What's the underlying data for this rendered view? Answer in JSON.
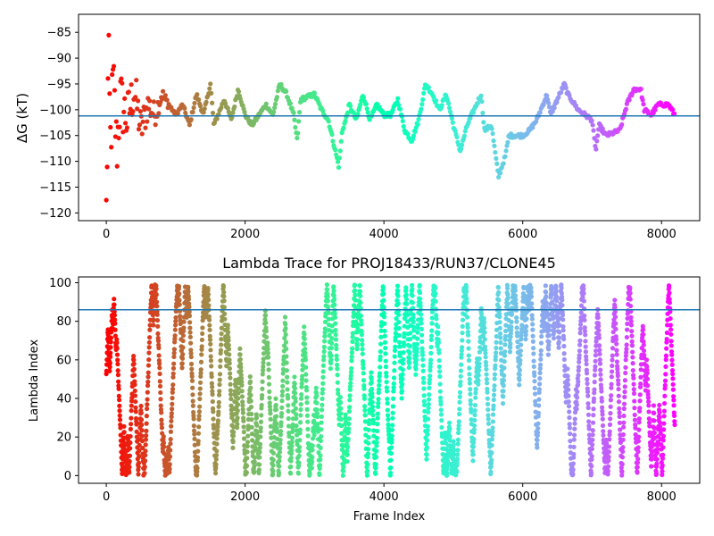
{
  "chart_data": [
    {
      "type": "scatter",
      "title": "",
      "xlabel": "",
      "ylabel": "ΔG (kT)",
      "xlim": [
        -400,
        8550
      ],
      "ylim": [
        -121.5,
        -81.5
      ],
      "xticks": [
        0,
        2000,
        4000,
        6000,
        8000
      ],
      "yticks": [
        -85,
        -90,
        -95,
        -100,
        -105,
        -110,
        -115,
        -120
      ],
      "ytick_labels": [
        "−85",
        "−90",
        "−95",
        "−100",
        "−105",
        "−110",
        "−115",
        "−120"
      ],
      "hline": -101.2,
      "hline_color": "#1f77b4",
      "colormap": "rainbow (reversed: red at start, violet at end)",
      "frames": 8190,
      "grid": false,
      "trace": [
        [
          0,
          -120
        ],
        [
          30,
          -90
        ],
        [
          60,
          -106
        ],
        [
          80,
          -100
        ],
        [
          100,
          -94
        ],
        [
          150,
          -108
        ],
        [
          200,
          -98
        ],
        [
          300,
          -102
        ],
        [
          400,
          -96
        ],
        [
          500,
          -104
        ],
        [
          600,
          -99
        ],
        [
          700,
          -101
        ],
        [
          800,
          -97
        ],
        [
          1000,
          -101
        ],
        [
          1100,
          -99
        ],
        [
          1200,
          -103
        ],
        [
          1300,
          -97
        ],
        [
          1400,
          -101
        ],
        [
          1500,
          -95
        ],
        [
          1550,
          -103
        ],
        [
          1700,
          -98
        ],
        [
          1800,
          -102
        ],
        [
          1900,
          -96
        ],
        [
          2000,
          -101
        ],
        [
          2100,
          -103
        ],
        [
          2200,
          -101
        ],
        [
          2300,
          -99
        ],
        [
          2400,
          -101
        ],
        [
          2500,
          -95
        ],
        [
          2600,
          -97
        ],
        [
          2700,
          -101
        ],
        [
          2750,
          -106
        ],
        [
          2800,
          -98
        ],
        [
          3000,
          -97
        ],
        [
          3100,
          -100
        ],
        [
          3200,
          -102
        ],
        [
          3300,
          -108
        ],
        [
          3350,
          -111
        ],
        [
          3400,
          -104
        ],
        [
          3450,
          -102
        ],
        [
          3500,
          -99
        ],
        [
          3600,
          -102
        ],
        [
          3700,
          -97
        ],
        [
          3800,
          -102
        ],
        [
          3900,
          -99
        ],
        [
          4000,
          -101
        ],
        [
          4100,
          -101
        ],
        [
          4200,
          -98
        ],
        [
          4300,
          -104
        ],
        [
          4400,
          -106
        ],
        [
          4500,
          -102
        ],
        [
          4600,
          -95
        ],
        [
          4700,
          -97
        ],
        [
          4800,
          -100
        ],
        [
          4900,
          -97
        ],
        [
          5000,
          -103
        ],
        [
          5100,
          -108
        ],
        [
          5200,
          -103
        ],
        [
          5300,
          -100
        ],
        [
          5400,
          -97
        ],
        [
          5450,
          -104
        ],
        [
          5550,
          -103
        ],
        [
          5650,
          -113
        ],
        [
          5750,
          -109
        ],
        [
          5800,
          -105
        ],
        [
          6000,
          -105
        ],
        [
          6100,
          -104
        ],
        [
          6200,
          -102
        ],
        [
          6350,
          -97
        ],
        [
          6400,
          -101
        ],
        [
          6500,
          -98
        ],
        [
          6600,
          -95
        ],
        [
          6650,
          -97
        ],
        [
          6800,
          -100
        ],
        [
          7000,
          -102
        ],
        [
          7050,
          -108
        ],
        [
          7100,
          -103
        ],
        [
          7200,
          -105
        ],
        [
          7400,
          -104
        ],
        [
          7500,
          -99
        ],
        [
          7600,
          -96
        ],
        [
          7700,
          -96
        ],
        [
          7750,
          -100
        ],
        [
          7850,
          -101
        ],
        [
          7950,
          -99
        ],
        [
          8100,
          -99
        ],
        [
          8190,
          -101
        ]
      ]
    },
    {
      "type": "scatter",
      "title": "Lambda Trace for PROJ18433/RUN37/CLONE45",
      "xlabel": "Frame Index",
      "ylabel": "Lambda Index",
      "xlim": [
        -400,
        8550
      ],
      "ylim": [
        -4,
        103
      ],
      "xticks": [
        0,
        2000,
        4000,
        6000,
        8000
      ],
      "yticks": [
        0,
        20,
        40,
        60,
        80,
        100
      ],
      "hline": 86,
      "hline_color": "#1f77b4",
      "colormap": "rainbow (reversed: red at start, violet at end)",
      "frames": 8190,
      "lambda_range": [
        0,
        99
      ],
      "grid": false
    }
  ]
}
